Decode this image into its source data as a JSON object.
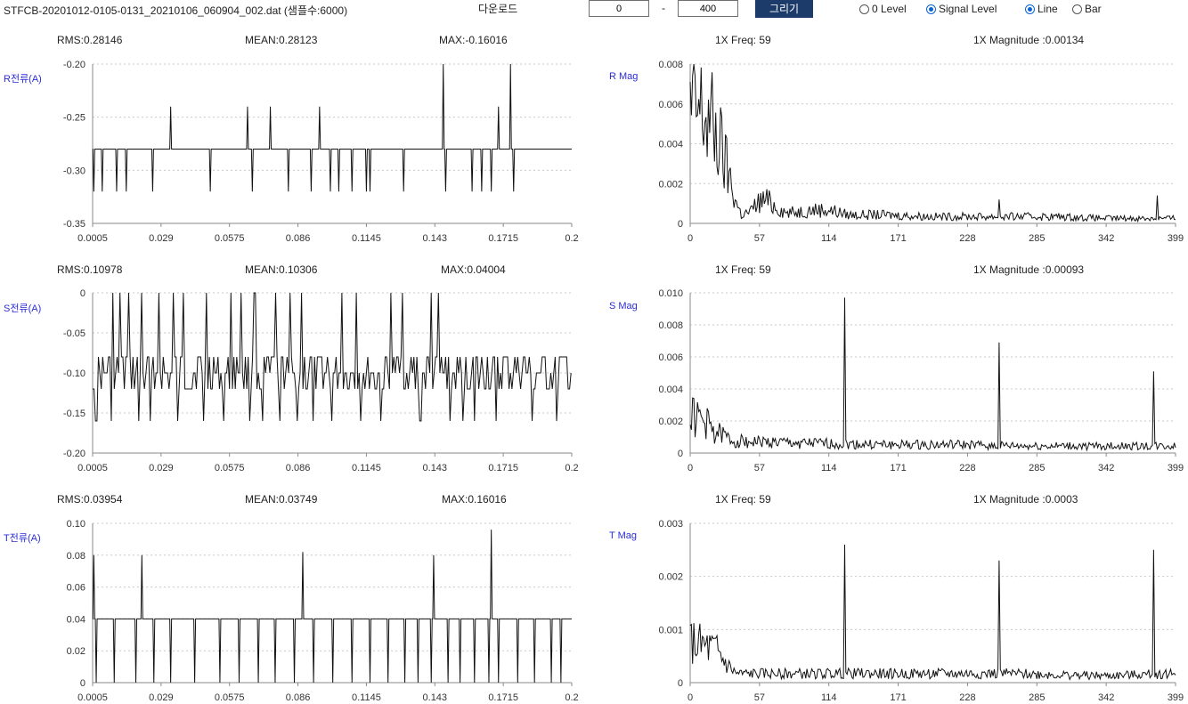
{
  "toolbar": {
    "file_title": "STFCB-20201012-0105-0131_20210106_060904_002.dat (샘플수:6000)",
    "download_label": "다운로드",
    "range_from": "0",
    "range_dash": "-",
    "range_to": "400",
    "draw_label": "그리기",
    "options": [
      {
        "label": "0 Level",
        "checked": false
      },
      {
        "label": "Signal Level",
        "checked": true
      },
      {
        "label": "Line",
        "checked": true
      },
      {
        "label": "Bar",
        "checked": false
      }
    ]
  },
  "colors": {
    "accent": "#1d3b6a",
    "radio_checked": "#0b63d6",
    "axis_label": "#2b2bd8"
  },
  "panels": [
    {
      "phase": "R",
      "stats": {
        "rms": "RMS:0.28146",
        "mean": "MEAN:0.28123",
        "max": "MAX:-0.16016"
      },
      "fft_stats": {
        "freq": "1X Freq: 59",
        "magnitude": "1X Magnitude :0.00134"
      },
      "time_ylabel": "R전류(A)",
      "fft_ylabel": "R Mag"
    },
    {
      "phase": "S",
      "stats": {
        "rms": "RMS:0.10978",
        "mean": "MEAN:0.10306",
        "max": "MAX:0.04004"
      },
      "fft_stats": {
        "freq": "1X Freq: 59",
        "magnitude": "1X Magnitude :0.00093"
      },
      "time_ylabel": "S전류(A)",
      "fft_ylabel": "S Mag"
    },
    {
      "phase": "T",
      "stats": {
        "rms": "RMS:0.03954",
        "mean": "MEAN:0.03749",
        "max": "MAX:0.16016"
      },
      "fft_stats": {
        "freq": "1X Freq: 59",
        "magnitude": "1X Magnitude :0.0003"
      },
      "time_ylabel": "T전류(A)",
      "fft_ylabel": "T Mag"
    }
  ],
  "chart_data": [
    {
      "type": "line",
      "series_name": "R전류(A)",
      "x_ticks": [
        "0.0005",
        "0.029",
        "0.0575",
        "0.086",
        "0.1145",
        "0.143",
        "0.1715",
        "0.2"
      ],
      "xlim": [
        0.0005,
        0.2
      ],
      "y_ticks": [
        -0.2,
        -0.25,
        -0.3,
        -0.35
      ],
      "y_tick_labels": [
        "-0.20",
        "-0.25",
        "-0.30",
        "-0.35"
      ],
      "ylim": [
        -0.35,
        -0.2
      ],
      "grid": true,
      "baseline": -0.28,
      "spikes": [
        {
          "x": 0.001,
          "y": -0.32
        },
        {
          "x": 0.0045,
          "y": -0.32
        },
        {
          "x": 0.0105,
          "y": -0.32
        },
        {
          "x": 0.0145,
          "y": -0.32
        },
        {
          "x": 0.0255,
          "y": -0.32
        },
        {
          "x": 0.033,
          "y": -0.24
        },
        {
          "x": 0.0495,
          "y": -0.32
        },
        {
          "x": 0.065,
          "y": -0.24
        },
        {
          "x": 0.067,
          "y": -0.32
        },
        {
          "x": 0.0745,
          "y": -0.24
        },
        {
          "x": 0.082,
          "y": -0.32
        },
        {
          "x": 0.0915,
          "y": -0.32
        },
        {
          "x": 0.095,
          "y": -0.24
        },
        {
          "x": 0.0995,
          "y": -0.32
        },
        {
          "x": 0.103,
          "y": -0.32
        },
        {
          "x": 0.1085,
          "y": -0.32
        },
        {
          "x": 0.1145,
          "y": -0.32
        },
        {
          "x": 0.116,
          "y": -0.32
        },
        {
          "x": 0.13,
          "y": -0.32
        },
        {
          "x": 0.1465,
          "y": -0.2
        },
        {
          "x": 0.1475,
          "y": -0.32
        },
        {
          "x": 0.1585,
          "y": -0.32
        },
        {
          "x": 0.1625,
          "y": -0.32
        },
        {
          "x": 0.1665,
          "y": -0.32
        },
        {
          "x": 0.1695,
          "y": -0.24
        },
        {
          "x": 0.1745,
          "y": -0.2
        },
        {
          "x": 0.1758,
          "y": -0.32
        }
      ]
    },
    {
      "type": "line",
      "series_name": "R Mag",
      "x_ticks": [
        "0",
        "57",
        "114",
        "171",
        "228",
        "285",
        "342",
        "399"
      ],
      "xlim": [
        0,
        399
      ],
      "y_ticks": [
        0.008,
        0.006,
        0.004,
        0.002,
        0
      ],
      "y_tick_labels": [
        "0.008",
        "0.006",
        "0.004",
        "0.002",
        "0"
      ],
      "ylim": [
        0,
        0.008
      ],
      "grid": true,
      "envelope": [
        [
          0,
          0.0066
        ],
        [
          10,
          0.0065
        ],
        [
          18,
          0.0058
        ],
        [
          25,
          0.0045
        ],
        [
          32,
          0.0028
        ],
        [
          38,
          0.0012
        ],
        [
          42,
          0.0005
        ],
        [
          50,
          0.0007
        ],
        [
          55,
          0.0012
        ],
        [
          62,
          0.0014
        ],
        [
          70,
          0.001
        ],
        [
          80,
          0.0006
        ],
        [
          100,
          0.0008
        ],
        [
          114,
          0.0008
        ],
        [
          130,
          0.0005
        ],
        [
          160,
          0.0005
        ],
        [
          200,
          0.0004
        ],
        [
          260,
          0.0004
        ],
        [
          300,
          0.0004
        ],
        [
          342,
          0.0003
        ],
        [
          399,
          0.0003
        ]
      ],
      "peaks": [
        {
          "x": 254,
          "y": 0.0012
        },
        {
          "x": 384,
          "y": 0.0014
        }
      ]
    },
    {
      "type": "line",
      "series_name": "S전류(A)",
      "x_ticks": [
        "0.0005",
        "0.029",
        "0.0575",
        "0.086",
        "0.1145",
        "0.143",
        "0.1715",
        "0.2"
      ],
      "xlim": [
        0.0005,
        0.2
      ],
      "y_ticks": [
        0,
        -0.05,
        -0.1,
        -0.15,
        -0.2
      ],
      "y_tick_labels": [
        "0",
        "-0.05",
        "-0.10",
        "-0.15",
        "-0.20"
      ],
      "ylim": [
        -0.2,
        0
      ],
      "grid": true,
      "levels": [
        -0.08,
        -0.1,
        -0.12
      ],
      "up_spikes": [
        0.009,
        0.012,
        0.0155,
        0.021,
        0.028,
        0.034,
        0.0385,
        0.048,
        0.058,
        0.0625,
        0.068,
        0.0765,
        0.0825,
        0.0875,
        0.1045,
        0.1105,
        0.1245,
        0.1295,
        0.1415,
        0.1445
      ],
      "down_spikes": [
        0.002,
        0.0085,
        0.0195,
        0.0245,
        0.036,
        0.0465,
        0.055,
        0.066,
        0.0715,
        0.0785,
        0.0855,
        0.0925,
        0.1,
        0.112,
        0.1205,
        0.137,
        0.1495,
        0.1545,
        0.1595,
        0.1685,
        0.1835,
        0.1935
      ]
    },
    {
      "type": "line",
      "series_name": "S Mag",
      "x_ticks": [
        "0",
        "57",
        "114",
        "171",
        "228",
        "285",
        "342",
        "399"
      ],
      "xlim": [
        0,
        399
      ],
      "y_ticks": [
        0.01,
        0.008,
        0.006,
        0.004,
        0.002,
        0
      ],
      "y_tick_labels": [
        "0.010",
        "0.008",
        "0.006",
        "0.004",
        "0.002",
        "0"
      ],
      "ylim": [
        0,
        0.01
      ],
      "grid": true,
      "envelope": [
        [
          0,
          0.0028
        ],
        [
          10,
          0.0024
        ],
        [
          20,
          0.0016
        ],
        [
          35,
          0.0009
        ],
        [
          60,
          0.0008
        ],
        [
          100,
          0.0007
        ],
        [
          160,
          0.0006
        ],
        [
          220,
          0.0006
        ],
        [
          280,
          0.0005
        ],
        [
          342,
          0.0005
        ],
        [
          399,
          0.0005
        ]
      ],
      "peaks": [
        {
          "x": 127,
          "y": 0.0097
        },
        {
          "x": 254,
          "y": 0.0069
        },
        {
          "x": 381,
          "y": 0.0051
        }
      ]
    },
    {
      "type": "line",
      "series_name": "T전류(A)",
      "x_ticks": [
        "0.0005",
        "0.029",
        "0.0575",
        "0.086",
        "0.1145",
        "0.143",
        "0.1715",
        "0.2"
      ],
      "xlim": [
        0.0005,
        0.2
      ],
      "y_ticks": [
        0.1,
        0.08,
        0.06,
        0.04,
        0.02,
        0
      ],
      "y_tick_labels": [
        "0.10",
        "0.08",
        "0.06",
        "0.04",
        "0.02",
        "0"
      ],
      "ylim": [
        0,
        0.1
      ],
      "grid": true,
      "baseline": 0.04,
      "up_spikes": [
        {
          "x": 0.001,
          "y": 0.08
        },
        {
          "x": 0.021,
          "y": 0.08
        },
        {
          "x": 0.088,
          "y": 0.082
        },
        {
          "x": 0.1425,
          "y": 0.08
        },
        {
          "x": 0.1665,
          "y": 0.096
        }
      ],
      "down_spikes": [
        0.002,
        0.0095,
        0.0185,
        0.026,
        0.033,
        0.043,
        0.0535,
        0.0615,
        0.0695,
        0.0765,
        0.0845,
        0.0925,
        0.1005,
        0.1085,
        0.116,
        0.1235,
        0.1305,
        0.136,
        0.1415,
        0.1485,
        0.1535,
        0.1595,
        0.1655,
        0.1695,
        0.1775,
        0.1845,
        0.1915,
        0.1955
      ]
    },
    {
      "type": "line",
      "series_name": "T Mag",
      "x_ticks": [
        "0",
        "57",
        "114",
        "171",
        "228",
        "285",
        "342",
        "399"
      ],
      "xlim": [
        0,
        399
      ],
      "y_ticks": [
        0.003,
        0.002,
        0.001,
        0
      ],
      "y_tick_labels": [
        "0.003",
        "0.002",
        "0.001",
        "0"
      ],
      "ylim": [
        0,
        0.003
      ],
      "grid": true,
      "envelope": [
        [
          0,
          0.0009
        ],
        [
          12,
          0.0008
        ],
        [
          22,
          0.0007
        ],
        [
          30,
          0.0004
        ],
        [
          38,
          0.0002
        ],
        [
          80,
          0.0002
        ],
        [
          160,
          0.0002
        ],
        [
          260,
          0.0002
        ],
        [
          342,
          0.00015
        ],
        [
          399,
          0.0002
        ]
      ],
      "peaks": [
        {
          "x": 127,
          "y": 0.0026
        },
        {
          "x": 254,
          "y": 0.0023
        },
        {
          "x": 381,
          "y": 0.0025
        }
      ]
    }
  ]
}
